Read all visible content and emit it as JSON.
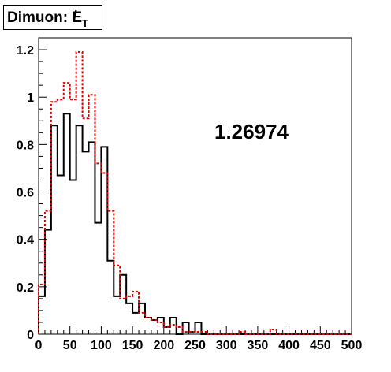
{
  "title": {
    "text": "Dimuon: ",
    "symbol": "E",
    "slash": "/",
    "subscript": "T"
  },
  "annotation": "1.26974",
  "chart_data": {
    "type": "histogram",
    "title": "Dimuon: E/T",
    "xlabel": "",
    "ylabel": "",
    "xlim": [
      0,
      500
    ],
    "ylim": [
      0,
      1.25
    ],
    "bin_width": 10,
    "x_ticks": [
      "0",
      "50",
      "100",
      "150",
      "200",
      "250",
      "300",
      "350",
      "400",
      "450",
      "500"
    ],
    "y_ticks": [
      "0",
      "0.2",
      "0.4",
      "0.6",
      "0.8",
      "1",
      "1.2"
    ],
    "y_tick_values": [
      0,
      0.2,
      0.4,
      0.6,
      0.8,
      1.0,
      1.2
    ],
    "series": [
      {
        "style": "solid",
        "color": "#000000",
        "bin_edges_start": 0,
        "values": [
          0.16,
          0.44,
          0.88,
          0.67,
          0.93,
          0.65,
          0.88,
          0.77,
          0.81,
          0.47,
          0.79,
          0.31,
          0.16,
          0.25,
          0.13,
          0.09,
          0.13,
          0.07,
          0.06,
          0.07,
          0.03,
          0.07,
          0.0,
          0.05,
          0.01,
          0.05,
          0.0,
          0.0,
          0.0,
          0.0,
          0.0,
          0.0,
          0.0,
          0.0,
          0.0,
          0.0,
          0.0,
          0.0,
          0.0,
          0.0,
          0.0,
          0.0,
          0.0,
          0.0,
          0.0,
          0.0,
          0.0,
          0.0,
          0.0,
          0.0
        ]
      },
      {
        "style": "dotted",
        "color": "#e00000",
        "bin_edges_start": 0,
        "values": [
          0.21,
          0.52,
          0.98,
          0.99,
          1.06,
          0.99,
          1.19,
          0.91,
          1.01,
          0.72,
          0.68,
          0.52,
          0.29,
          0.15,
          0.16,
          0.18,
          0.09,
          0.07,
          0.06,
          0.05,
          0.03,
          0.04,
          0.03,
          0.01,
          0.01,
          0.01,
          0.01,
          0.0,
          0.0,
          0.0,
          0.0,
          0.0,
          0.01,
          0.0,
          0.0,
          0.0,
          0.0,
          0.02,
          0.0,
          0.0,
          0.0,
          0.0,
          0.0,
          0.0,
          0.0,
          0.0,
          0.0,
          0.0,
          0.0,
          0.0
        ]
      }
    ]
  }
}
